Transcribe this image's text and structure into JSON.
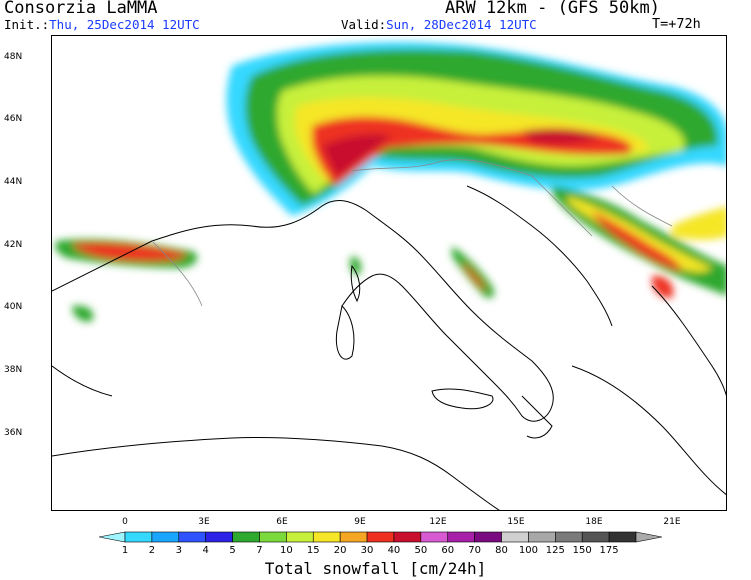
{
  "header": {
    "title": "Consorzia LaMMA",
    "model": "ARW 12km - (GFS 50km)",
    "init_label": "Init.:",
    "init_value": "Thu, 25Dec2014 12UTC",
    "valid_label": "Valid:",
    "valid_value": "Sun, 28Dec2014 12UTC",
    "step": "T=+72h"
  },
  "map": {
    "lat_labels": [
      "48N",
      "46N",
      "44N",
      "42N",
      "40N",
      "38N",
      "36N"
    ],
    "lon_labels": [
      "0",
      "3E",
      "6E",
      "9E",
      "12E",
      "15E",
      "18E",
      "21E"
    ]
  },
  "colorbar": {
    "title": "Total snowfall [cm/24h]",
    "levels": [
      "1",
      "2",
      "3",
      "4",
      "5",
      "7",
      "10",
      "15",
      "20",
      "30",
      "40",
      "50",
      "60",
      "70",
      "80",
      "100",
      "125",
      "150",
      "175"
    ],
    "colors": [
      "#9ff5ff",
      "#35d8ff",
      "#1aa6ff",
      "#2f54ff",
      "#2b22e6",
      "#2ea82e",
      "#7cd93c",
      "#c7f03a",
      "#f5e628",
      "#f5a623",
      "#ee3020",
      "#c8102e",
      "#d85ad3",
      "#a820a8",
      "#7a0a80",
      "#d0d0d0",
      "#a8a8a8",
      "#7a7a7a",
      "#555555",
      "#333333",
      "#aaaaaa"
    ]
  }
}
